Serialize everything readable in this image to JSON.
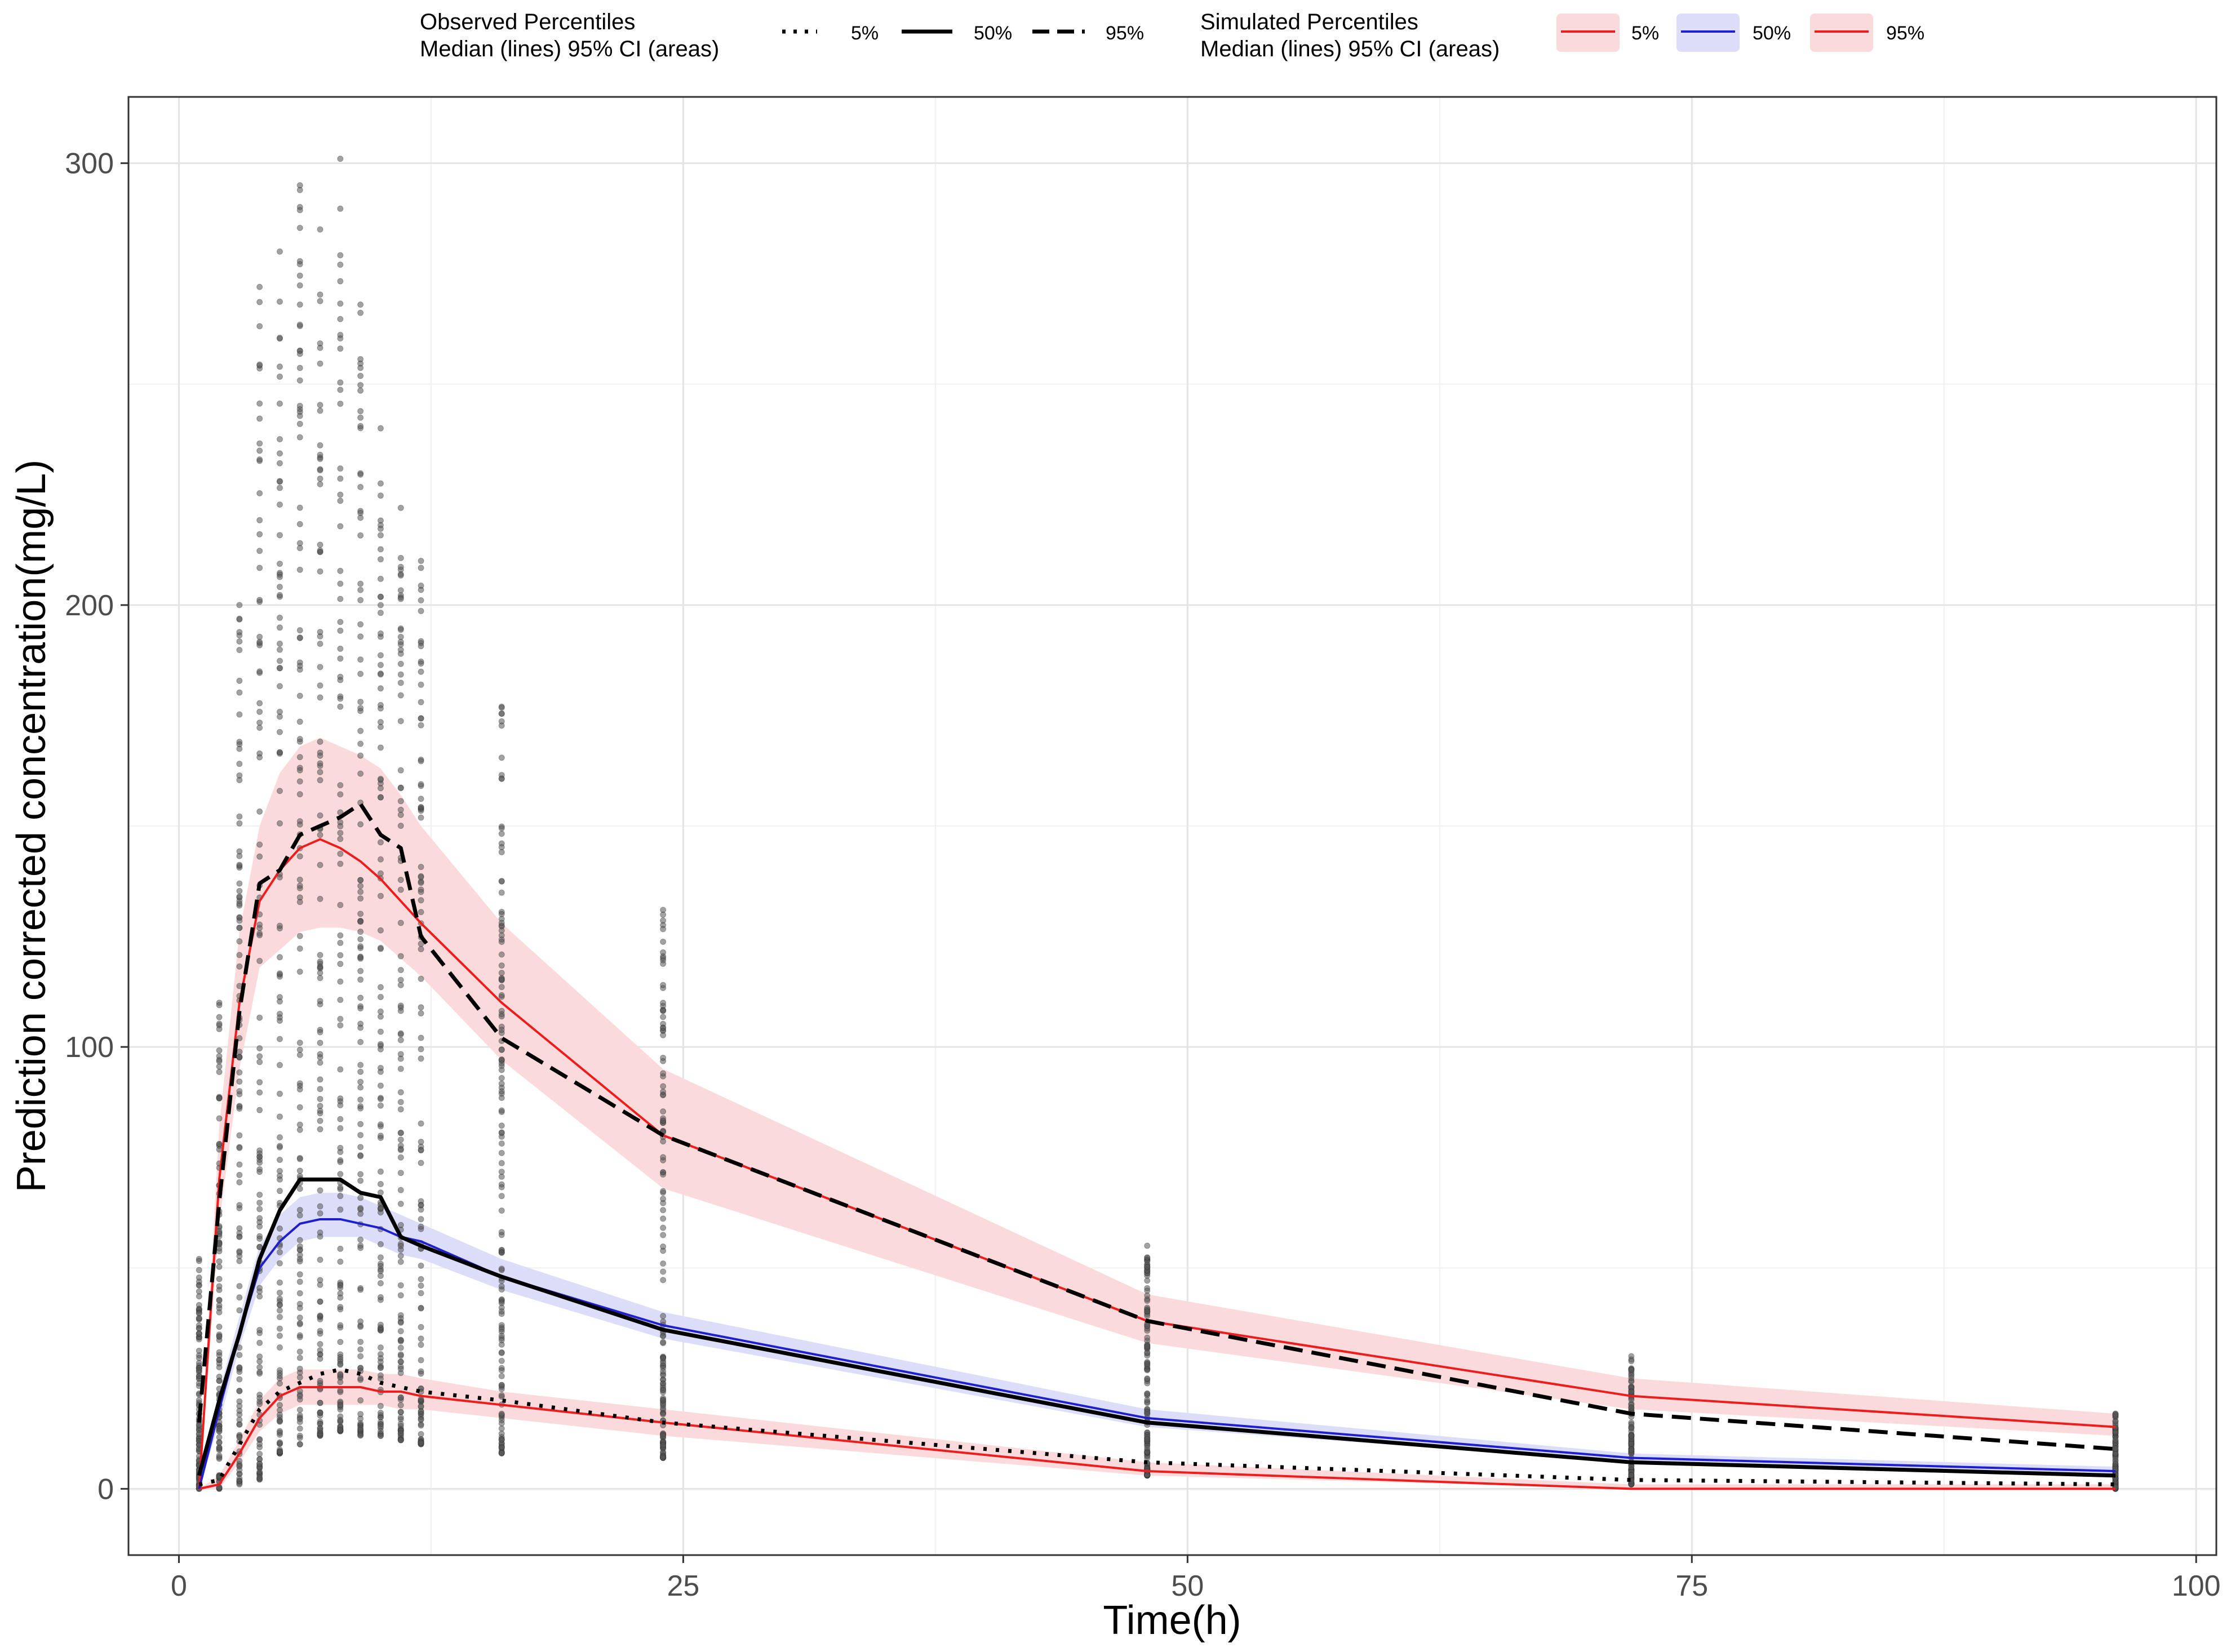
{
  "legend": {
    "observed": {
      "title_line1": "Observed Percentiles",
      "title_line2": "Median (lines) 95% CI (areas)",
      "keys": [
        {
          "label": "5%",
          "style": "dotted",
          "color": "#000000"
        },
        {
          "label": "50%",
          "style": "solid",
          "color": "#000000"
        },
        {
          "label": "95%",
          "style": "dashed",
          "color": "#000000"
        }
      ]
    },
    "simulated": {
      "title_line1": "Simulated Percentiles",
      "title_line2": "Median (lines) 95% CI (areas)",
      "keys": [
        {
          "label": "5%",
          "line_color": "#ee1c1c",
          "fill_color": "#fbdadc"
        },
        {
          "label": "50%",
          "line_color": "#1f1fcf",
          "fill_color": "#dcddf8"
        },
        {
          "label": "95%",
          "line_color": "#ee1c1c",
          "fill_color": "#fbdadc"
        }
      ]
    }
  },
  "chart_data": {
    "type": "line",
    "title": "",
    "xlabel": "Time(h)",
    "ylabel": "Prediction corrected concentration(mg/L)",
    "xlim": [
      -2.5,
      101
    ],
    "ylim": [
      -15,
      315
    ],
    "x_ticks": [
      0,
      25,
      50,
      75,
      100
    ],
    "y_ticks": [
      0,
      100,
      200,
      300
    ],
    "grid": true,
    "colors": {
      "sim_pi_line": "#ee1c1c",
      "sim_pi_area": "#fbdadc",
      "sim_median_line": "#1f1fcf",
      "sim_median_area": "#dcddf8",
      "obs_line": "#000000",
      "points": "#555555"
    },
    "simulated": {
      "x": [
        1,
        2,
        3,
        4,
        5,
        6,
        7,
        8,
        9,
        10,
        11,
        12,
        16,
        24,
        48,
        72,
        96
      ],
      "p95_median": [
        0,
        70,
        110,
        133,
        140,
        145,
        147,
        145,
        142,
        138,
        133,
        128,
        110,
        80,
        38,
        21,
        14
      ],
      "p95_ci_low": [
        0,
        60,
        95,
        118,
        122,
        126,
        127,
        127,
        126,
        124,
        120,
        116,
        97,
        68,
        33,
        18,
        12
      ],
      "p95_ci_high": [
        0,
        82,
        126,
        150,
        162,
        168,
        170,
        168,
        166,
        163,
        157,
        150,
        128,
        95,
        44,
        25,
        17
      ],
      "p50_median": [
        0,
        18,
        35,
        50,
        56,
        60,
        61,
        61,
        60,
        59,
        57,
        56,
        48,
        37,
        16,
        7,
        4
      ],
      "p50_ci_low": [
        0,
        15,
        32,
        46,
        52,
        56,
        57,
        57,
        57,
        55,
        53,
        52,
        45,
        34,
        14,
        6,
        3
      ],
      "p50_ci_high": [
        0,
        22,
        39,
        55,
        62,
        66,
        67,
        67,
        66,
        64,
        62,
        60,
        52,
        40,
        18,
        8,
        5
      ],
      "p5_median": [
        0,
        1,
        8,
        16,
        21,
        23,
        23,
        23,
        23,
        22,
        22,
        21,
        19,
        15,
        4,
        0,
        0
      ],
      "p5_ci_low": [
        0,
        0,
        6,
        13,
        17,
        19,
        19,
        19,
        19,
        19,
        18,
        18,
        16,
        12,
        3,
        0,
        0
      ],
      "p5_ci_high": [
        0,
        3,
        11,
        20,
        25,
        27,
        27,
        27,
        27,
        26,
        26,
        25,
        22,
        18,
        6,
        1,
        1
      ]
    },
    "observed": {
      "x": [
        1,
        2,
        3,
        4,
        5,
        6,
        7,
        8,
        9,
        10,
        11,
        12,
        16,
        24,
        48,
        72,
        96
      ],
      "p95": [
        15,
        65,
        108,
        137,
        140,
        148,
        150,
        152,
        155,
        148,
        145,
        125,
        102,
        80,
        38,
        17,
        9
      ],
      "p50": [
        3,
        20,
        35,
        52,
        63,
        70,
        70,
        70,
        67,
        66,
        57,
        55,
        48,
        36,
        15,
        6,
        3
      ],
      "p5": [
        1,
        2,
        10,
        18,
        22,
        24,
        26,
        27,
        26,
        24,
        23,
        22,
        20,
        15,
        6,
        2,
        1
      ]
    },
    "observed_time_points": [
      1,
      2,
      3,
      4,
      5,
      6,
      7,
      8,
      9,
      10,
      11,
      12,
      16,
      24,
      48,
      72,
      96
    ],
    "observed_point_range_max": [
      52,
      110,
      200,
      272,
      280,
      295,
      285,
      301,
      268,
      240,
      222,
      210,
      177,
      131,
      55,
      30,
      17
    ],
    "observed_point_range_min": [
      0,
      0,
      1,
      2,
      8,
      10,
      12,
      13,
      12,
      12,
      11,
      10,
      8,
      7,
      3,
      1,
      0
    ]
  }
}
